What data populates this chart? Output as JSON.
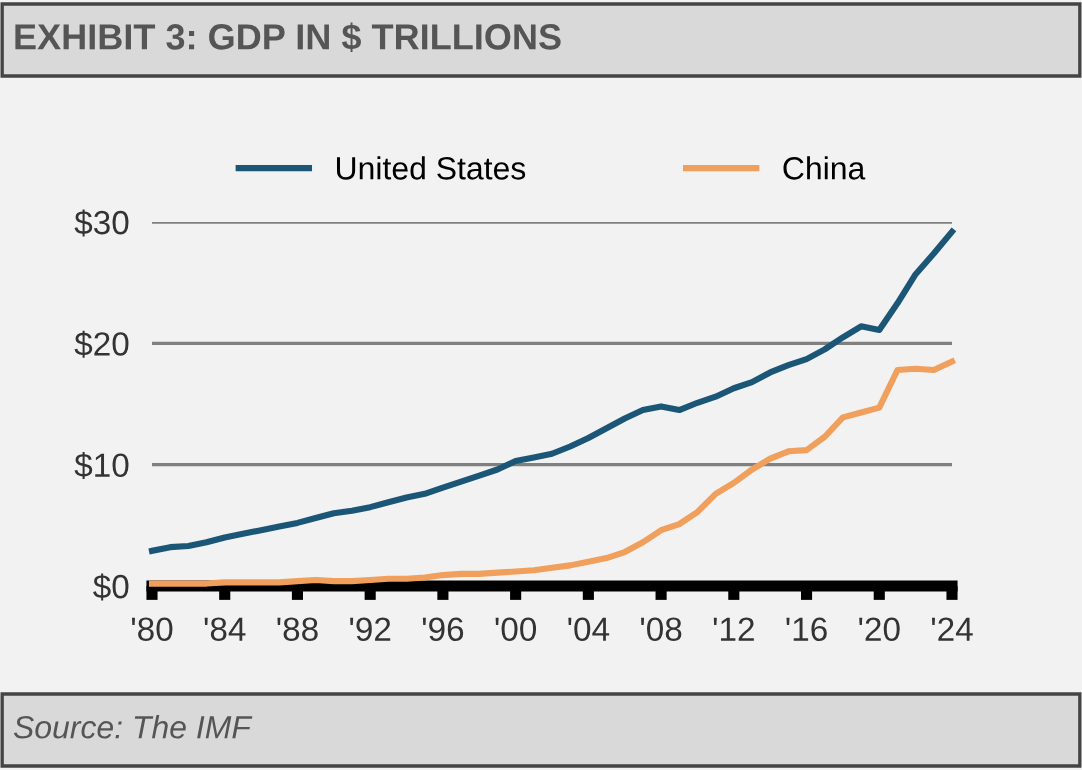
{
  "chart_data": {
    "type": "line",
    "title": "EXHIBIT 3: GDP IN $ TRILLIONS",
    "x": [
      1980,
      1981,
      1982,
      1983,
      1984,
      1985,
      1986,
      1987,
      1988,
      1989,
      1990,
      1991,
      1992,
      1993,
      1994,
      1995,
      1996,
      1997,
      1998,
      1999,
      2000,
      2001,
      2002,
      2003,
      2004,
      2005,
      2006,
      2007,
      2008,
      2009,
      2010,
      2011,
      2012,
      2013,
      2014,
      2015,
      2016,
      2017,
      2018,
      2019,
      2020,
      2021,
      2022,
      2023,
      2024
    ],
    "series": [
      {
        "name": "United States",
        "color": "#1b5677",
        "values": [
          2.9,
          3.2,
          3.3,
          3.6,
          4.0,
          4.3,
          4.6,
          4.9,
          5.2,
          5.6,
          6.0,
          6.2,
          6.5,
          6.9,
          7.3,
          7.6,
          8.1,
          8.6,
          9.1,
          9.6,
          10.3,
          10.6,
          10.9,
          11.5,
          12.2,
          13.0,
          13.8,
          14.5,
          14.8,
          14.5,
          15.1,
          15.6,
          16.3,
          16.8,
          17.6,
          18.2,
          18.7,
          19.5,
          20.5,
          21.4,
          21.1,
          23.3,
          25.7,
          27.4,
          29.2
        ]
      },
      {
        "name": "China",
        "color": "#f0a05c",
        "values": [
          0.2,
          0.2,
          0.2,
          0.2,
          0.3,
          0.3,
          0.3,
          0.3,
          0.4,
          0.5,
          0.4,
          0.4,
          0.5,
          0.6,
          0.6,
          0.7,
          0.9,
          1.0,
          1.0,
          1.1,
          1.2,
          1.3,
          1.5,
          1.7,
          2.0,
          2.3,
          2.8,
          3.6,
          4.6,
          5.1,
          6.1,
          7.6,
          8.5,
          9.6,
          10.5,
          11.1,
          11.2,
          12.3,
          13.9,
          14.3,
          14.7,
          17.8,
          17.9,
          17.8,
          18.5
        ]
      }
    ],
    "xlim": [
      1980,
      2024
    ],
    "xticks": [
      {
        "value": 1980,
        "label": "'80"
      },
      {
        "value": 1984,
        "label": "'84"
      },
      {
        "value": 1988,
        "label": "'88"
      },
      {
        "value": 1992,
        "label": "'92"
      },
      {
        "value": 1996,
        "label": "'96"
      },
      {
        "value": 2000,
        "label": "'00"
      },
      {
        "value": 2004,
        "label": "'04"
      },
      {
        "value": 2008,
        "label": "'08"
      },
      {
        "value": 2012,
        "label": "'12"
      },
      {
        "value": 2016,
        "label": "'16"
      },
      {
        "value": 2020,
        "label": "'20"
      },
      {
        "value": 2024,
        "label": "'24"
      }
    ],
    "ylim": [
      0,
      30
    ],
    "yticks": [
      {
        "value": 0,
        "label": "$0"
      },
      {
        "value": 10,
        "label": "$10"
      },
      {
        "value": 20,
        "label": "$20"
      },
      {
        "value": 30,
        "label": "$30"
      }
    ],
    "grid": "y",
    "legend": "top",
    "marker": "none",
    "line_style": "solid",
    "annotations": [
      "Source: The IMF"
    ]
  }
}
